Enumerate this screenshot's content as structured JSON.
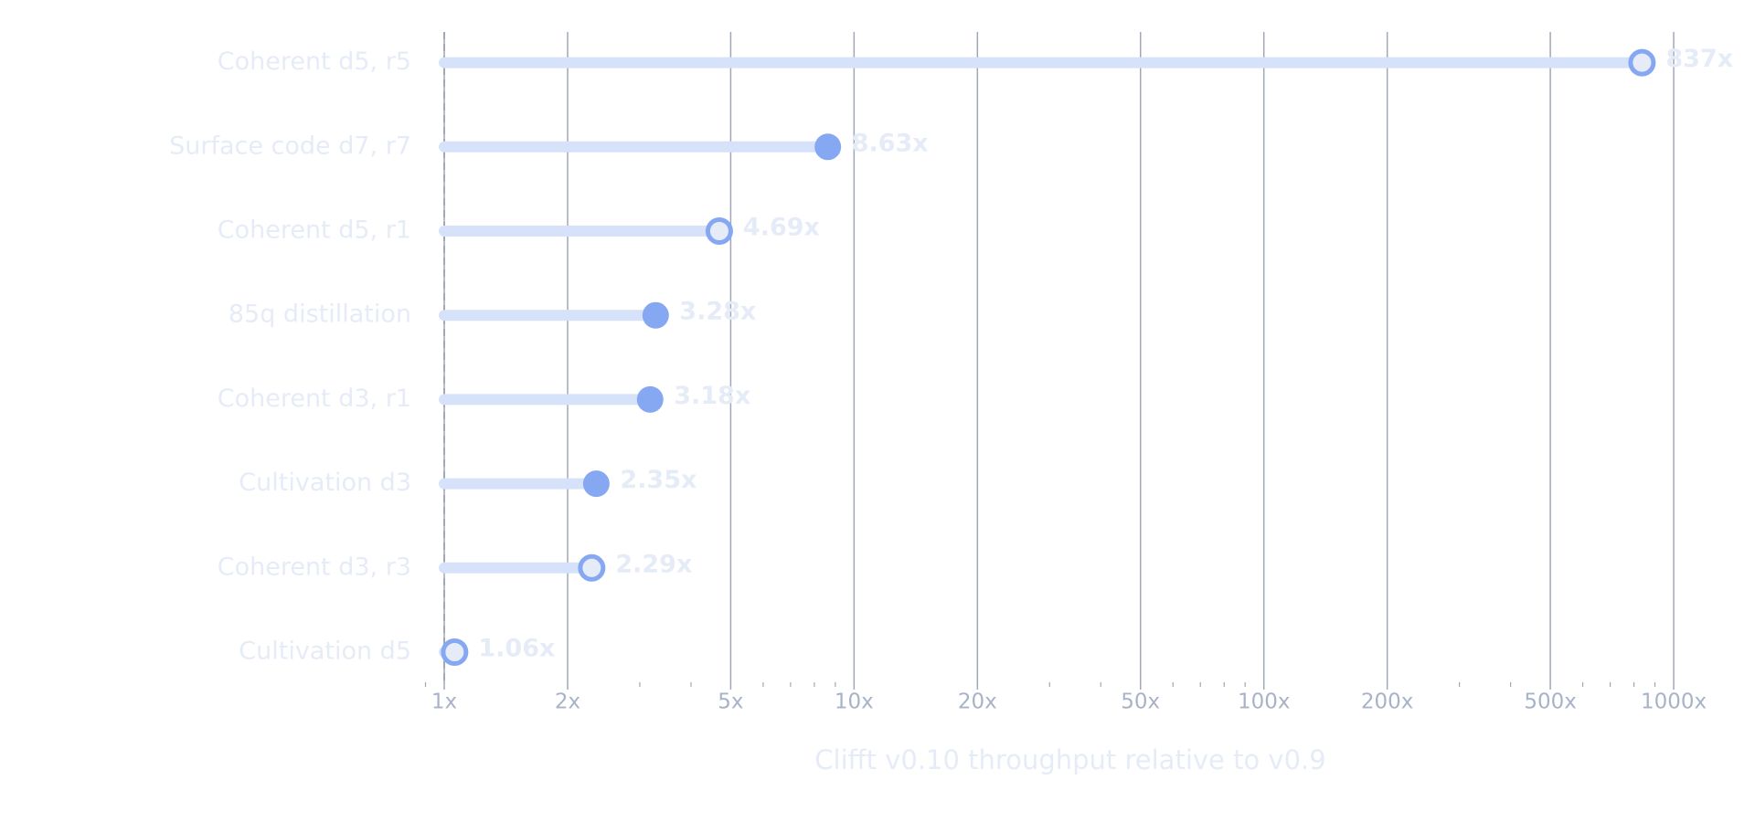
{
  "chart_data": {
    "type": "lollipop",
    "categories": [
      "Coherent d5, r5",
      "Surface code d7, r7",
      "Coherent d5, r1",
      "85q distillation",
      "Coherent d3, r1",
      "Cultivation d3",
      "Coherent d3, r3",
      "Cultivation d5"
    ],
    "values": [
      837,
      8.63,
      4.69,
      3.28,
      3.18,
      2.35,
      2.29,
      1.06
    ],
    "value_labels": [
      "837x",
      "8.63x",
      "4.69x",
      "3.28x",
      "3.18x",
      "2.35x",
      "2.29x",
      "1.06x"
    ],
    "markers": [
      "hollow",
      "filled",
      "hollow",
      "filled",
      "filled",
      "filled",
      "hollow",
      "hollow"
    ],
    "color": "#86a8f2",
    "stem_color": "#d6e2fa",
    "xlabel": "Clifft v0.10 throughput relative to v0.9",
    "xscale": "log",
    "xlim": [
      0.9,
      1100
    ],
    "xticks": [
      {
        "value": 1,
        "label": "1x"
      },
      {
        "value": 2,
        "label": "2x"
      },
      {
        "value": 5,
        "label": "5x"
      },
      {
        "value": 10,
        "label": "10x"
      },
      {
        "value": 20,
        "label": "20x"
      },
      {
        "value": 50,
        "label": "50x"
      },
      {
        "value": 100,
        "label": "100x"
      },
      {
        "value": 200,
        "label": "200x"
      },
      {
        "value": 500,
        "label": "500x"
      },
      {
        "value": 1000,
        "label": "1000x"
      }
    ],
    "xminorticks": [
      0.9,
      3,
      4,
      6,
      7,
      8,
      9,
      30,
      40,
      60,
      70,
      80,
      90,
      300,
      400,
      600,
      700,
      800,
      900
    ],
    "reference_line": 1,
    "grid": true
  }
}
